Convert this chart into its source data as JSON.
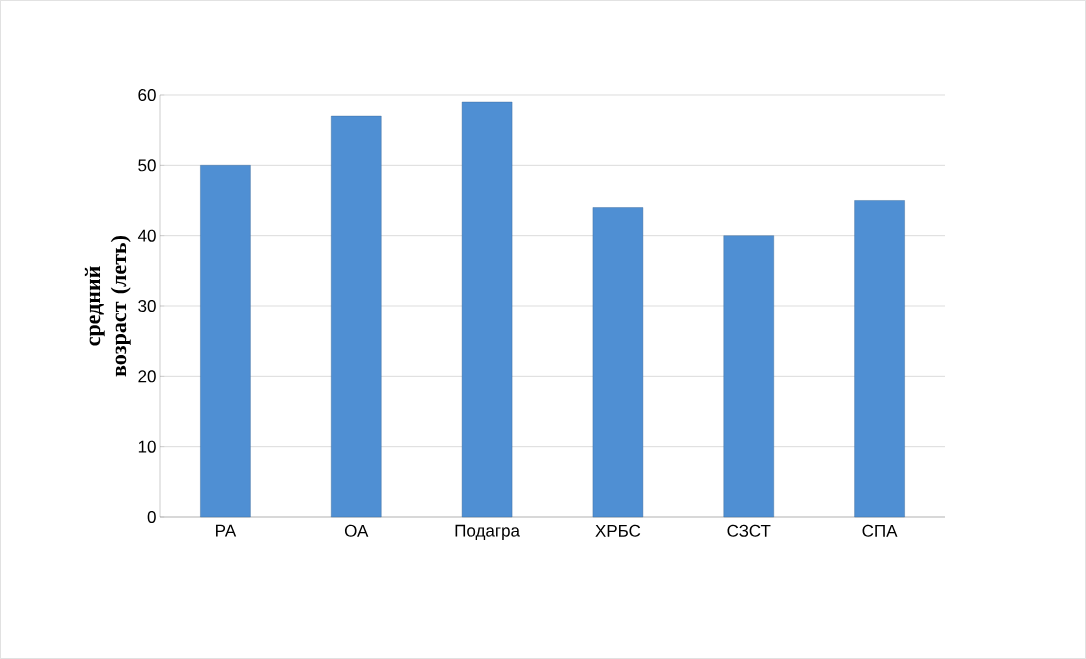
{
  "chart_data": {
    "type": "bar",
    "ylabel": "средний возраст (леть)",
    "categories": [
      "РА",
      "ОА",
      "Подагра",
      "ХРБС",
      "СЗСТ",
      "СПА"
    ],
    "values": [
      50,
      57,
      59,
      44,
      40,
      45
    ],
    "color": "#4f8fd3",
    "ylim": [
      0,
      60
    ],
    "yticks": [
      0,
      10,
      20,
      30,
      40,
      50,
      60
    ],
    "grid": "y"
  }
}
